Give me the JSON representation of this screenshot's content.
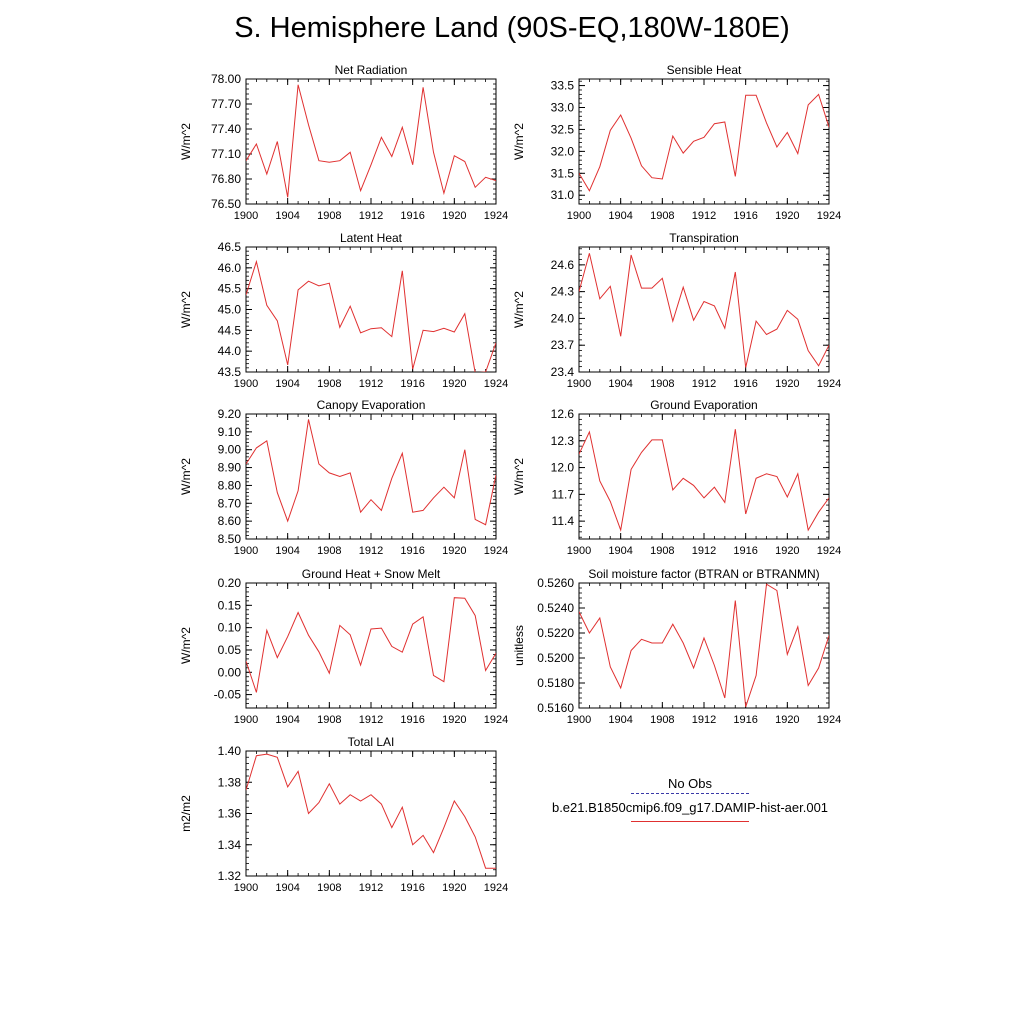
{
  "page": {
    "title": "S. Hemisphere Land (90S-EQ,180W-180E)"
  },
  "legend": {
    "obs_label": "No Obs",
    "case_label": "b.e21.B1850cmip6.f09_g17.DAMIP-hist-aer.001",
    "obs_color": "#3a3aa8",
    "case_color": "#e03030"
  },
  "chart_data": [
    {
      "type": "line",
      "title": "Net Radiation",
      "ylabel": "W/m^2",
      "xlim": [
        1900,
        1924
      ],
      "ylim": [
        76.5,
        78.0
      ],
      "yticks": [
        "76.50",
        "76.80",
        "77.10",
        "77.40",
        "77.70",
        "78.00"
      ],
      "xticks": [
        "1900",
        "1904",
        "1908",
        "1912",
        "1916",
        "1920",
        "1924"
      ],
      "x": [
        1900,
        1901,
        1902,
        1903,
        1904,
        1905,
        1906,
        1907,
        1908,
        1909,
        1910,
        1911,
        1912,
        1913,
        1914,
        1915,
        1916,
        1917,
        1918,
        1919,
        1920,
        1921,
        1922,
        1923,
        1924
      ],
      "series": [
        {
          "color": "#e03030",
          "values": [
            77.02,
            77.22,
            76.86,
            77.25,
            76.58,
            77.93,
            77.45,
            77.02,
            77.0,
            77.02,
            77.12,
            76.66,
            76.97,
            77.3,
            77.07,
            77.42,
            76.97,
            77.9,
            77.12,
            76.63,
            77.08,
            77.01,
            76.7,
            76.82,
            76.78
          ]
        }
      ]
    },
    {
      "type": "line",
      "title": "Sensible Heat",
      "ylabel": "W/m^2",
      "xlim": [
        1900,
        1924
      ],
      "ylim": [
        30.8,
        33.65
      ],
      "yticks": [
        "31.0",
        "31.5",
        "32.0",
        "32.5",
        "33.0",
        "33.5"
      ],
      "xticks": [
        "1900",
        "1904",
        "1908",
        "1912",
        "1916",
        "1920",
        "1924"
      ],
      "x": [
        1900,
        1901,
        1902,
        1903,
        1904,
        1905,
        1906,
        1907,
        1908,
        1909,
        1910,
        1911,
        1912,
        1913,
        1914,
        1915,
        1916,
        1917,
        1918,
        1919,
        1920,
        1921,
        1922,
        1923,
        1924
      ],
      "series": [
        {
          "color": "#e03030",
          "values": [
            31.5,
            31.1,
            31.65,
            32.48,
            32.83,
            32.3,
            31.67,
            31.4,
            31.37,
            32.35,
            31.96,
            32.23,
            32.32,
            32.63,
            32.67,
            31.43,
            33.28,
            33.28,
            32.65,
            32.1,
            32.43,
            31.95,
            33.06,
            33.3,
            32.55
          ]
        }
      ]
    },
    {
      "type": "line",
      "title": "Latent Heat",
      "ylabel": "W/m^2",
      "xlim": [
        1900,
        1924
      ],
      "ylim": [
        43.5,
        46.5
      ],
      "yticks": [
        "43.5",
        "44.0",
        "44.5",
        "45.0",
        "45.5",
        "46.0",
        "46.5"
      ],
      "xticks": [
        "1900",
        "1904",
        "1908",
        "1912",
        "1916",
        "1920",
        "1924"
      ],
      "x": [
        1900,
        1901,
        1902,
        1903,
        1904,
        1905,
        1906,
        1907,
        1908,
        1909,
        1910,
        1911,
        1912,
        1913,
        1914,
        1915,
        1916,
        1917,
        1918,
        1919,
        1920,
        1921,
        1922,
        1923,
        1924
      ],
      "series": [
        {
          "color": "#e03030",
          "values": [
            45.35,
            46.15,
            45.1,
            44.73,
            43.67,
            45.47,
            45.68,
            45.57,
            45.63,
            44.57,
            45.08,
            44.44,
            44.54,
            44.56,
            44.35,
            45.93,
            43.57,
            44.5,
            44.47,
            44.55,
            44.46,
            44.9,
            43.48,
            43.5,
            44.2
          ]
        }
      ]
    },
    {
      "type": "line",
      "title": "Transpiration",
      "ylabel": "W/m^2",
      "xlim": [
        1900,
        1924
      ],
      "ylim": [
        23.4,
        24.8
      ],
      "yticks": [
        "23.4",
        "23.7",
        "24.0",
        "24.3",
        "24.6"
      ],
      "xticks": [
        "1900",
        "1904",
        "1908",
        "1912",
        "1916",
        "1920",
        "1924"
      ],
      "x": [
        1900,
        1901,
        1902,
        1903,
        1904,
        1905,
        1906,
        1907,
        1908,
        1909,
        1910,
        1911,
        1912,
        1913,
        1914,
        1915,
        1916,
        1917,
        1918,
        1919,
        1920,
        1921,
        1922,
        1923,
        1924
      ],
      "series": [
        {
          "color": "#e03030",
          "values": [
            24.3,
            24.73,
            24.22,
            24.36,
            23.8,
            24.71,
            24.34,
            24.34,
            24.45,
            23.97,
            24.35,
            23.98,
            24.19,
            24.14,
            23.89,
            24.52,
            23.45,
            23.97,
            23.82,
            23.88,
            24.09,
            23.99,
            23.64,
            23.47,
            23.7
          ]
        }
      ]
    },
    {
      "type": "line",
      "title": "Canopy Evaporation",
      "ylabel": "W/m^2",
      "xlim": [
        1900,
        1924
      ],
      "ylim": [
        8.5,
        9.2
      ],
      "yticks": [
        "8.50",
        "8.60",
        "8.70",
        "8.80",
        "8.90",
        "9.00",
        "9.10",
        "9.20"
      ],
      "xticks": [
        "1900",
        "1904",
        "1908",
        "1912",
        "1916",
        "1920",
        "1924"
      ],
      "x": [
        1900,
        1901,
        1902,
        1903,
        1904,
        1905,
        1906,
        1907,
        1908,
        1909,
        1910,
        1911,
        1912,
        1913,
        1914,
        1915,
        1916,
        1917,
        1918,
        1919,
        1920,
        1921,
        1922,
        1923,
        1924
      ],
      "series": [
        {
          "color": "#e03030",
          "values": [
            8.92,
            9.01,
            9.05,
            8.76,
            8.6,
            8.77,
            9.17,
            8.92,
            8.87,
            8.85,
            8.87,
            8.65,
            8.72,
            8.66,
            8.84,
            8.98,
            8.65,
            8.66,
            8.73,
            8.79,
            8.73,
            9.0,
            8.61,
            8.58,
            8.86
          ]
        }
      ]
    },
    {
      "type": "line",
      "title": "Ground Evaporation",
      "ylabel": "W/m^2",
      "xlim": [
        1900,
        1924
      ],
      "ylim": [
        11.2,
        12.6
      ],
      "yticks": [
        "11.4",
        "11.7",
        "12.0",
        "12.3",
        "12.6"
      ],
      "xticks": [
        "1900",
        "1904",
        "1908",
        "1912",
        "1916",
        "1920",
        "1924"
      ],
      "x": [
        1900,
        1901,
        1902,
        1903,
        1904,
        1905,
        1906,
        1907,
        1908,
        1909,
        1910,
        1911,
        1912,
        1913,
        1914,
        1915,
        1916,
        1917,
        1918,
        1919,
        1920,
        1921,
        1922,
        1923,
        1924
      ],
      "series": [
        {
          "color": "#e03030",
          "values": [
            12.15,
            12.4,
            11.85,
            11.62,
            11.3,
            11.98,
            12.17,
            12.31,
            12.31,
            11.75,
            11.88,
            11.8,
            11.66,
            11.78,
            11.61,
            12.43,
            11.48,
            11.88,
            11.93,
            11.9,
            11.67,
            11.93,
            11.3,
            11.5,
            11.66
          ]
        }
      ]
    },
    {
      "type": "line",
      "title": "Ground Heat + Snow Melt",
      "ylabel": "W/m^2",
      "xlim": [
        1900,
        1924
      ],
      "ylim": [
        -0.08,
        0.2
      ],
      "yticks": [
        "-0.05",
        "0.00",
        "0.05",
        "0.10",
        "0.15",
        "0.20"
      ],
      "xticks": [
        "1900",
        "1904",
        "1908",
        "1912",
        "1916",
        "1920",
        "1924"
      ],
      "x": [
        1900,
        1901,
        1902,
        1903,
        1904,
        1905,
        1906,
        1907,
        1908,
        1909,
        1910,
        1911,
        1912,
        1913,
        1914,
        1915,
        1916,
        1917,
        1918,
        1919,
        1920,
        1921,
        1922,
        1923,
        1924
      ],
      "series": [
        {
          "color": "#e03030",
          "values": [
            0.025,
            -0.045,
            0.094,
            0.033,
            0.08,
            0.134,
            0.083,
            0.046,
            -0.002,
            0.105,
            0.084,
            0.016,
            0.097,
            0.099,
            0.058,
            0.045,
            0.108,
            0.124,
            -0.007,
            -0.021,
            0.167,
            0.166,
            0.127,
            0.004,
            0.043
          ]
        }
      ]
    },
    {
      "type": "line",
      "title": "Soil moisture factor (BTRAN or BTRANMN)",
      "ylabel": "unitless",
      "xlim": [
        1900,
        1924
      ],
      "ylim": [
        0.516,
        0.526
      ],
      "yticks": [
        "0.5160",
        "0.5180",
        "0.5200",
        "0.5220",
        "0.5240",
        "0.5260"
      ],
      "xticks": [
        "1900",
        "1904",
        "1908",
        "1912",
        "1916",
        "1920",
        "1924"
      ],
      "x": [
        1900,
        1901,
        1902,
        1903,
        1904,
        1905,
        1906,
        1907,
        1908,
        1909,
        1910,
        1911,
        1912,
        1913,
        1914,
        1915,
        1916,
        1917,
        1918,
        1919,
        1920,
        1921,
        1922,
        1923,
        1924
      ],
      "series": [
        {
          "color": "#e03030",
          "values": [
            0.5237,
            0.522,
            0.5232,
            0.5193,
            0.5176,
            0.5206,
            0.5215,
            0.5212,
            0.5212,
            0.5227,
            0.5212,
            0.5192,
            0.5216,
            0.5194,
            0.5168,
            0.5246,
            0.5161,
            0.5186,
            0.5259,
            0.5254,
            0.5203,
            0.5225,
            0.5178,
            0.5192,
            0.5218
          ]
        }
      ]
    },
    {
      "type": "line",
      "title": "Total LAI",
      "ylabel": "m2/m2",
      "xlim": [
        1900,
        1924
      ],
      "ylim": [
        1.32,
        1.4
      ],
      "yticks": [
        "1.32",
        "1.34",
        "1.36",
        "1.38",
        "1.40"
      ],
      "xticks": [
        "1900",
        "1904",
        "1908",
        "1912",
        "1916",
        "1920",
        "1924"
      ],
      "x": [
        1900,
        1901,
        1902,
        1903,
        1904,
        1905,
        1906,
        1907,
        1908,
        1909,
        1910,
        1911,
        1912,
        1913,
        1914,
        1915,
        1916,
        1917,
        1918,
        1919,
        1920,
        1921,
        1922,
        1923,
        1924
      ],
      "series": [
        {
          "color": "#e03030",
          "values": [
            1.375,
            1.397,
            1.398,
            1.396,
            1.377,
            1.387,
            1.36,
            1.367,
            1.379,
            1.366,
            1.372,
            1.368,
            1.372,
            1.366,
            1.351,
            1.364,
            1.34,
            1.346,
            1.335,
            1.351,
            1.368,
            1.358,
            1.345,
            1.325,
            1.325
          ]
        }
      ]
    }
  ]
}
